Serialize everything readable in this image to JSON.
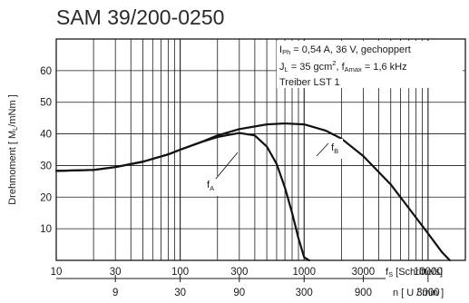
{
  "chart_data": {
    "type": "line",
    "title": "SAM 39/200-0250",
    "ylabel_main": "Drehmoment [ M",
    "ylabel_sub": "L",
    "ylabel_end": "/mNm ]",
    "xlabel_fs": {
      "main": "f",
      "sub": "S",
      "end": " [Schritte/s]"
    },
    "xlabel_n": "n [ U / min ]",
    "x_scale": "log",
    "xlim": [
      10,
      20000
    ],
    "ylim": [
      0,
      70
    ],
    "grid": true,
    "y_ticks": [
      10,
      20,
      30,
      40,
      50,
      60
    ],
    "x_ticks_fs": [
      {
        "value": 10,
        "label": "10"
      },
      {
        "value": 30,
        "label": "30"
      },
      {
        "value": 100,
        "label": "100"
      },
      {
        "value": 300,
        "label": "300"
      },
      {
        "value": 1000,
        "label": "1000"
      },
      {
        "value": 3000,
        "label": "3000"
      },
      {
        "value": 10000,
        "label": "10000"
      }
    ],
    "x_ticks_n": [
      {
        "value": 30,
        "label": "9"
      },
      {
        "value": 100,
        "label": "30"
      },
      {
        "value": 300,
        "label": "90"
      },
      {
        "value": 1000,
        "label": "300"
      },
      {
        "value": 3000,
        "label": "900"
      },
      {
        "value": 10000,
        "label": "3000"
      }
    ],
    "annotations": {
      "line1": {
        "p1": "I",
        "s1": "Ph",
        "p2": " = 0,54 A, 36 V, gechoppert"
      },
      "line2": {
        "p1": "J",
        "s1": "L",
        "p2": " = 35 gcm",
        "sup": "2",
        "p3": ", f",
        "s2": "Amax",
        "p4": " = 1,6 kHz"
      },
      "line3": "Treiber LST 1"
    },
    "series": [
      {
        "label_main": "f",
        "label_sub": "A",
        "x": [
          10,
          20,
          30,
          50,
          80,
          100,
          150,
          200,
          300,
          400,
          500,
          600,
          700,
          800,
          900,
          1000,
          1100
        ],
        "y": [
          28.3,
          28.6,
          29.5,
          31.2,
          33.5,
          35,
          37.5,
          39,
          40.3,
          39.5,
          36,
          30.5,
          23,
          15,
          7,
          1,
          0
        ]
      },
      {
        "label_main": "f",
        "label_sub": "B",
        "x": [
          10,
          20,
          30,
          50,
          80,
          100,
          150,
          200,
          300,
          500,
          700,
          1000,
          1500,
          2000,
          3000,
          5000,
          7000,
          10000,
          13000,
          15000
        ],
        "y": [
          28.3,
          28.6,
          29.5,
          31.2,
          33.5,
          35,
          37.5,
          39.5,
          41.5,
          43,
          43.3,
          43,
          41,
          38.5,
          33,
          24,
          16.5,
          8.5,
          2.5,
          0
        ]
      }
    ]
  }
}
